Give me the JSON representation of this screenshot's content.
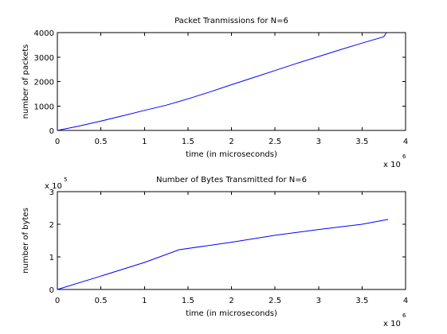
{
  "chart_data": [
    {
      "type": "line",
      "title": "Packet Tranmissions for N=6",
      "xlabel": "time (in microseconds)",
      "ylabel": "number of packets",
      "xlim": [
        0,
        4000000
      ],
      "ylim": [
        0,
        4000
      ],
      "x_ticks": [
        0,
        500000,
        1000000,
        1500000,
        2000000,
        2500000,
        3000000,
        3500000,
        4000000
      ],
      "x_tick_labels": [
        "0",
        "0.5",
        "1",
        "1.5",
        "2",
        "2.5",
        "3",
        "3.5",
        "4"
      ],
      "y_ticks": [
        0,
        1000,
        2000,
        3000,
        4000
      ],
      "y_tick_labels": [
        "0",
        "1000",
        "2000",
        "3000",
        "4000"
      ],
      "x_exponent_base": "x 10",
      "x_exponent_power": "6",
      "y_exponent_base": "",
      "y_exponent_power": "",
      "grid": false,
      "series": [
        {
          "color": "#0000ff",
          "x": [
            0,
            250000,
            500000,
            750000,
            1000000,
            1250000,
            1500000,
            1750000,
            2000000,
            2250000,
            2500000,
            2750000,
            3000000,
            3250000,
            3500000,
            3750000,
            3780000
          ],
          "y": [
            0,
            180,
            380,
            600,
            820,
            1030,
            1290,
            1570,
            1870,
            2160,
            2450,
            2740,
            3020,
            3300,
            3570,
            3830,
            4000
          ]
        }
      ]
    },
    {
      "type": "line",
      "title": "Number of Bytes Transmitted for N=6",
      "xlabel": "time (in microseconds)",
      "ylabel": "number of bytes",
      "xlim": [
        0,
        4000000
      ],
      "ylim": [
        0,
        300000
      ],
      "x_ticks": [
        0,
        500000,
        1000000,
        1500000,
        2000000,
        2500000,
        3000000,
        3500000,
        4000000
      ],
      "x_tick_labels": [
        "0",
        "0.5",
        "1",
        "1.5",
        "2",
        "2.5",
        "3",
        "3.5",
        "4"
      ],
      "y_ticks": [
        0,
        100000,
        200000,
        300000
      ],
      "y_tick_labels": [
        "0",
        "1",
        "2",
        "3"
      ],
      "x_exponent_base": "x 10",
      "x_exponent_power": "6",
      "y_exponent_base": "x 10",
      "y_exponent_power": "5",
      "grid": false,
      "series": [
        {
          "color": "#0000ff",
          "x": [
            0,
            500000,
            1000000,
            1400000,
            2000000,
            2500000,
            3000000,
            3500000,
            3800000
          ],
          "y": [
            0,
            41000,
            83000,
            122000,
            145000,
            166000,
            184000,
            200000,
            215000
          ]
        }
      ]
    }
  ]
}
